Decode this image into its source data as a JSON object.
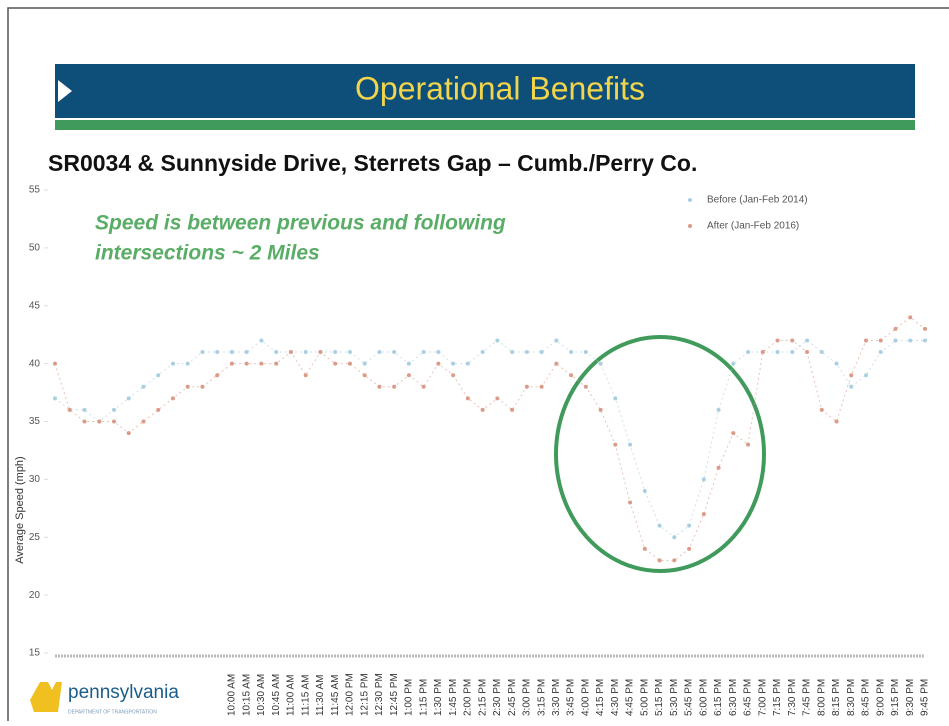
{
  "slide": {
    "title": "Operational Benefits",
    "subtitle": "SR0034 & Sunnyside Drive, Sterrets Gap – Cumb./Perry Co.",
    "logo": "pennsylvania",
    "logo_subtitle": "DEPARTMENT OF TRANSPORTATION"
  },
  "chart_data": {
    "type": "line",
    "annotation": [
      "Speed is between previous and following",
      "intersections ~ 2 Miles"
    ],
    "ylabel": "Average Speed (mph)",
    "ylim": [
      15,
      55
    ],
    "yticks": [
      15,
      20,
      25,
      30,
      35,
      40,
      45,
      50,
      55
    ],
    "categories": [
      null,
      null,
      null,
      null,
      null,
      null,
      null,
      null,
      null,
      null,
      null,
      null,
      "10:00 AM",
      "10:15 AM",
      "10:30 AM",
      "10:45 AM",
      "11:00 AM",
      "11:15 AM",
      "11:30 AM",
      "11:45 AM",
      "12:00 PM",
      "12:15 PM",
      "12:30 PM",
      "12:45 PM",
      "1:00 PM",
      "1:15 PM",
      "1:30 PM",
      "1:45 PM",
      "2:00 PM",
      "2:15 PM",
      "2:30 PM",
      "2:45 PM",
      "3:00 PM",
      "3:15 PM",
      "3:30 PM",
      "3:45 PM",
      "4:00 PM",
      "4:15 PM",
      "4:30 PM",
      "4:45 PM",
      "5:00 PM",
      "5:15 PM",
      "5:30 PM",
      "5:45 PM",
      "6:00 PM",
      "6:15 PM",
      "6:30 PM",
      "6:45 PM",
      "7:00 PM",
      "7:15 PM",
      "7:30 PM",
      "7:45 PM",
      "8:00 PM",
      "8:15 PM",
      "8:30 PM",
      "8:45 PM",
      "9:00 PM",
      "9:15 PM",
      "9:30 PM",
      "9:45 PM"
    ],
    "series": [
      {
        "name": "Before (Jan-Feb 2014)",
        "color": "#a9cfe0",
        "values": [
          37,
          36,
          36,
          35,
          36,
          37,
          38,
          39,
          40,
          40,
          41,
          41,
          41,
          41,
          42,
          41,
          41,
          41,
          41,
          41,
          41,
          40,
          41,
          41,
          40,
          41,
          41,
          40,
          40,
          41,
          42,
          41,
          41,
          41,
          42,
          41,
          41,
          40,
          37,
          33,
          29,
          26,
          25,
          26,
          30,
          36,
          40,
          41,
          41,
          41,
          41,
          42,
          41,
          40,
          38,
          39,
          41,
          42,
          42,
          42
        ]
      },
      {
        "name": "After (Jan-Feb 2016)",
        "color": "#dc9a88",
        "values": [
          40,
          36,
          35,
          35,
          35,
          34,
          35,
          36,
          37,
          38,
          38,
          39,
          40,
          40,
          40,
          40,
          41,
          39,
          41,
          40,
          40,
          39,
          38,
          38,
          39,
          38,
          40,
          39,
          37,
          36,
          37,
          36,
          38,
          38,
          40,
          39,
          38,
          36,
          33,
          28,
          24,
          23,
          23,
          24,
          27,
          31,
          34,
          33,
          41,
          42,
          42,
          41,
          36,
          35,
          39,
          42,
          42,
          43,
          44,
          43
        ]
      }
    ]
  }
}
